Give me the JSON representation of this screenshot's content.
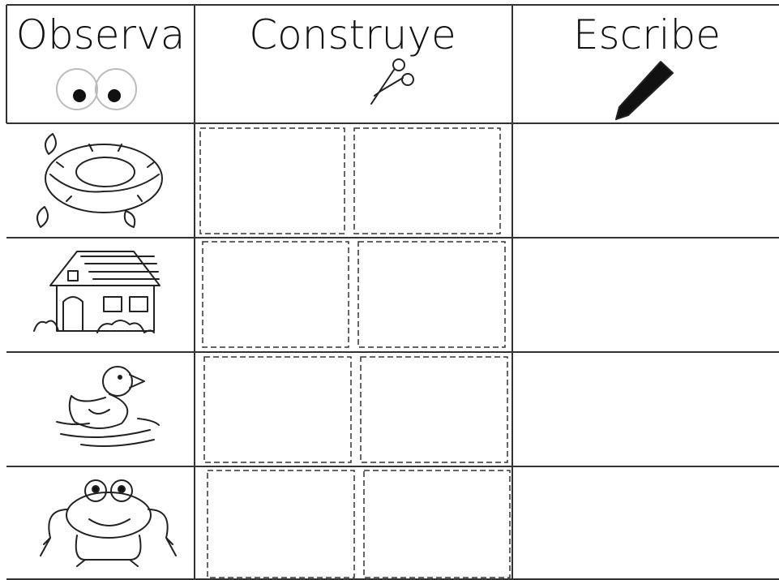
{
  "header": {
    "columns": [
      "Observa",
      "Construye",
      "Escribe"
    ]
  }
}
